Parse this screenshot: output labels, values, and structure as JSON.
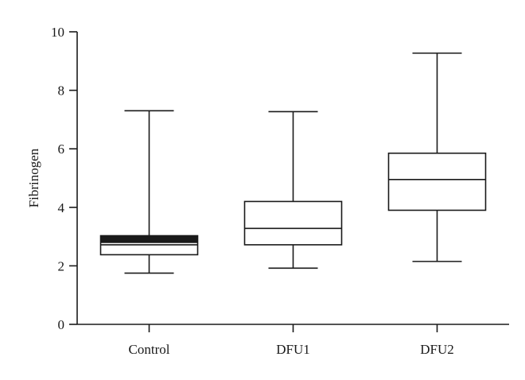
{
  "chart_data": {
    "type": "box",
    "title": "",
    "xlabel": "",
    "ylabel": "Fibrinogen",
    "ylim": [
      0,
      10
    ],
    "yticks": [
      0,
      2,
      4,
      6,
      8,
      10
    ],
    "grid": false,
    "legend": "none",
    "colors": {
      "stroke": "#1a1a1a",
      "fill": "#ffffff"
    },
    "categories": [
      "Control",
      "DFU1",
      "DFU2"
    ],
    "boxes": [
      {
        "name": "Control",
        "min": 1.75,
        "q1": 2.38,
        "median": 2.72,
        "q3": 3.03,
        "max": 7.3,
        "q3_band_filled": true,
        "band_low": 2.78
      },
      {
        "name": "DFU1",
        "min": 1.92,
        "q1": 2.72,
        "median": 3.28,
        "q3": 4.2,
        "max": 7.27,
        "q3_band_filled": false
      },
      {
        "name": "DFU2",
        "min": 2.15,
        "q1": 3.9,
        "median": 4.95,
        "q3": 5.85,
        "max": 9.27,
        "q3_band_filled": false
      }
    ]
  }
}
